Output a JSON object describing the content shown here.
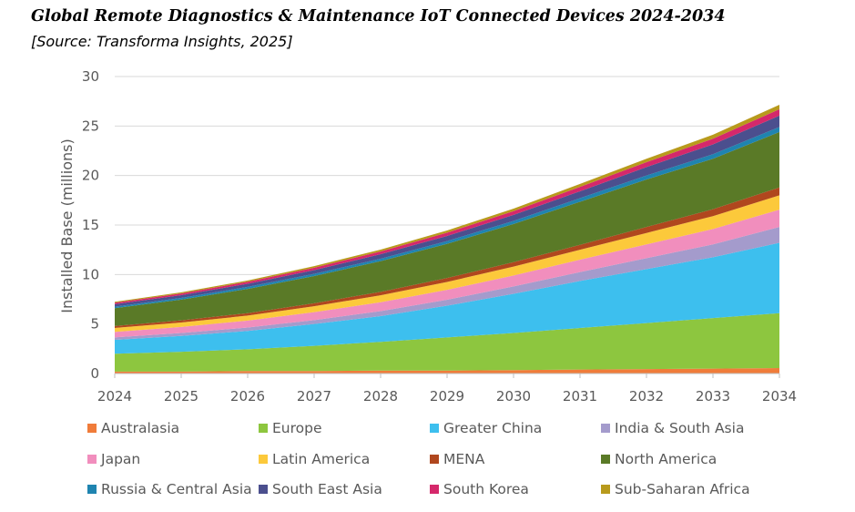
{
  "title": "Global Remote Diagnostics & Maintenance IoT Connected Devices 2024-2034",
  "subtitle": "[Source: Transforma Insights, 2025]",
  "chart_data": {
    "type": "area",
    "stacked": true,
    "ylabel": "Installed Base (millions)",
    "xlabel": "",
    "ylim": [
      0,
      30
    ],
    "yticks": [
      0,
      5,
      10,
      15,
      20,
      25,
      30
    ],
    "gridlines": true,
    "legend_position": "bottom",
    "x": [
      "2024",
      "2025",
      "2026",
      "2027",
      "2028",
      "2029",
      "2030",
      "2031",
      "2032",
      "2033",
      "2034"
    ],
    "series": [
      {
        "name": "Australasia",
        "color": "#F07C3A",
        "values": [
          0.2,
          0.2,
          0.25,
          0.25,
          0.3,
          0.3,
          0.35,
          0.4,
          0.45,
          0.5,
          0.55
        ]
      },
      {
        "name": "Europe",
        "color": "#8DC63F",
        "values": [
          1.8,
          2.0,
          2.2,
          2.55,
          2.9,
          3.35,
          3.75,
          4.2,
          4.65,
          5.1,
          5.55
        ]
      },
      {
        "name": "Greater China",
        "color": "#3DBFEE",
        "values": [
          1.4,
          1.6,
          1.85,
          2.2,
          2.6,
          3.2,
          3.95,
          4.75,
          5.45,
          6.15,
          7.1
        ]
      },
      {
        "name": "India & South Asia",
        "color": "#A49BCC",
        "values": [
          0.25,
          0.3,
          0.35,
          0.4,
          0.5,
          0.6,
          0.75,
          0.9,
          1.1,
          1.3,
          1.6
        ]
      },
      {
        "name": "Japan",
        "color": "#F18EBD",
        "values": [
          0.55,
          0.6,
          0.7,
          0.8,
          0.9,
          1.0,
          1.1,
          1.25,
          1.4,
          1.55,
          1.75
        ]
      },
      {
        "name": "Latin America",
        "color": "#FCC93B",
        "values": [
          0.4,
          0.45,
          0.5,
          0.6,
          0.7,
          0.8,
          0.9,
          1.0,
          1.15,
          1.3,
          1.45
        ]
      },
      {
        "name": "MENA",
        "color": "#B0471E",
        "values": [
          0.2,
          0.22,
          0.25,
          0.3,
          0.35,
          0.4,
          0.45,
          0.5,
          0.6,
          0.7,
          0.8
        ]
      },
      {
        "name": "North America",
        "color": "#5A7A27",
        "values": [
          1.8,
          2.1,
          2.45,
          2.75,
          3.1,
          3.45,
          3.85,
          4.35,
          4.8,
          5.1,
          5.6
        ]
      },
      {
        "name": "Russia & Central Asia",
        "color": "#1F84B0",
        "values": [
          0.15,
          0.17,
          0.2,
          0.22,
          0.25,
          0.28,
          0.32,
          0.36,
          0.4,
          0.45,
          0.5
        ]
      },
      {
        "name": "South East Asia",
        "color": "#4B4F8E",
        "values": [
          0.25,
          0.28,
          0.32,
          0.38,
          0.45,
          0.52,
          0.6,
          0.7,
          0.85,
          1.0,
          1.15
        ]
      },
      {
        "name": "South Korea",
        "color": "#D5286B",
        "values": [
          0.15,
          0.17,
          0.2,
          0.24,
          0.28,
          0.33,
          0.38,
          0.44,
          0.5,
          0.57,
          0.65
        ]
      },
      {
        "name": "Sub-Saharan Africa",
        "color": "#B89A1C",
        "values": [
          0.1,
          0.11,
          0.13,
          0.16,
          0.19,
          0.22,
          0.26,
          0.3,
          0.35,
          0.4,
          0.45
        ]
      }
    ]
  }
}
